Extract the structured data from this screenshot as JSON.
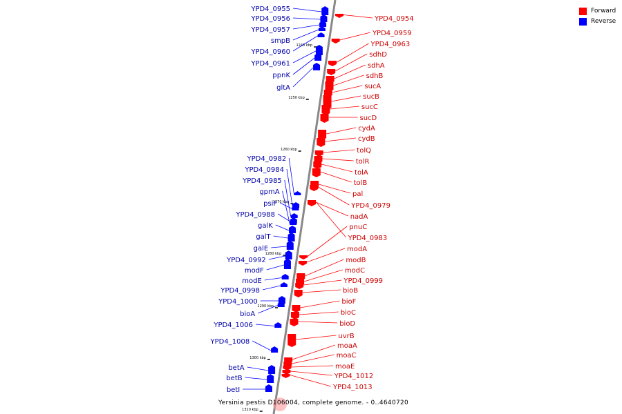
{
  "legend": {
    "items": [
      {
        "label": "Forward",
        "color": "#ff0000"
      },
      {
        "label": "Reverse",
        "color": "#0000ff"
      }
    ]
  },
  "caption": "Yersinia pestis D106004, complete genome. - 0..4640720",
  "colors": {
    "forward": "#ff0000",
    "reverse": "#0000ff",
    "backbone": "#888888"
  },
  "ticks": [
    "1240 kbp",
    "1250 kbp",
    "1260 kbp",
    "1270 kbp",
    "1280 kbp",
    "1290 kbp",
    "1300 kbp",
    "1310 kbp"
  ],
  "reverse_genes": [
    "YPD4_0955",
    "YPD4_0956",
    "YPD4_0957",
    "smpB",
    "YPD4_0960",
    "YPD4_0961",
    "ppnK",
    "gltA",
    "YPD4_0982",
    "YPD4_0984",
    "YPD4_0985",
    "gpmA",
    "psiF",
    "YPD4_0988",
    "galK",
    "galT",
    "galE",
    "YPD4_0992",
    "modF",
    "modE",
    "YPD4_0998",
    "YPD4_1000",
    "bioA",
    "YPD4_1006",
    "YPD4_1008",
    "betA",
    "betB",
    "betI"
  ],
  "forward_genes": [
    "YPD4_0954",
    "YPD4_0959",
    "YPD4_0963",
    "sdhD",
    "sdhA",
    "sdhB",
    "sucA",
    "sucB",
    "sucC",
    "sucD",
    "cydA",
    "cydB",
    "tolQ",
    "tolR",
    "tolA",
    "tolB",
    "pal",
    "YPD4_0979",
    "nadA",
    "pnuC",
    "YPD4_0983",
    "modA",
    "modB",
    "modC",
    "YPD4_0999",
    "bioB",
    "bioF",
    "bioC",
    "bioD",
    "uvrB",
    "moaA",
    "moaC",
    "moaE",
    "YPD4_1012",
    "YPD4_1013"
  ]
}
